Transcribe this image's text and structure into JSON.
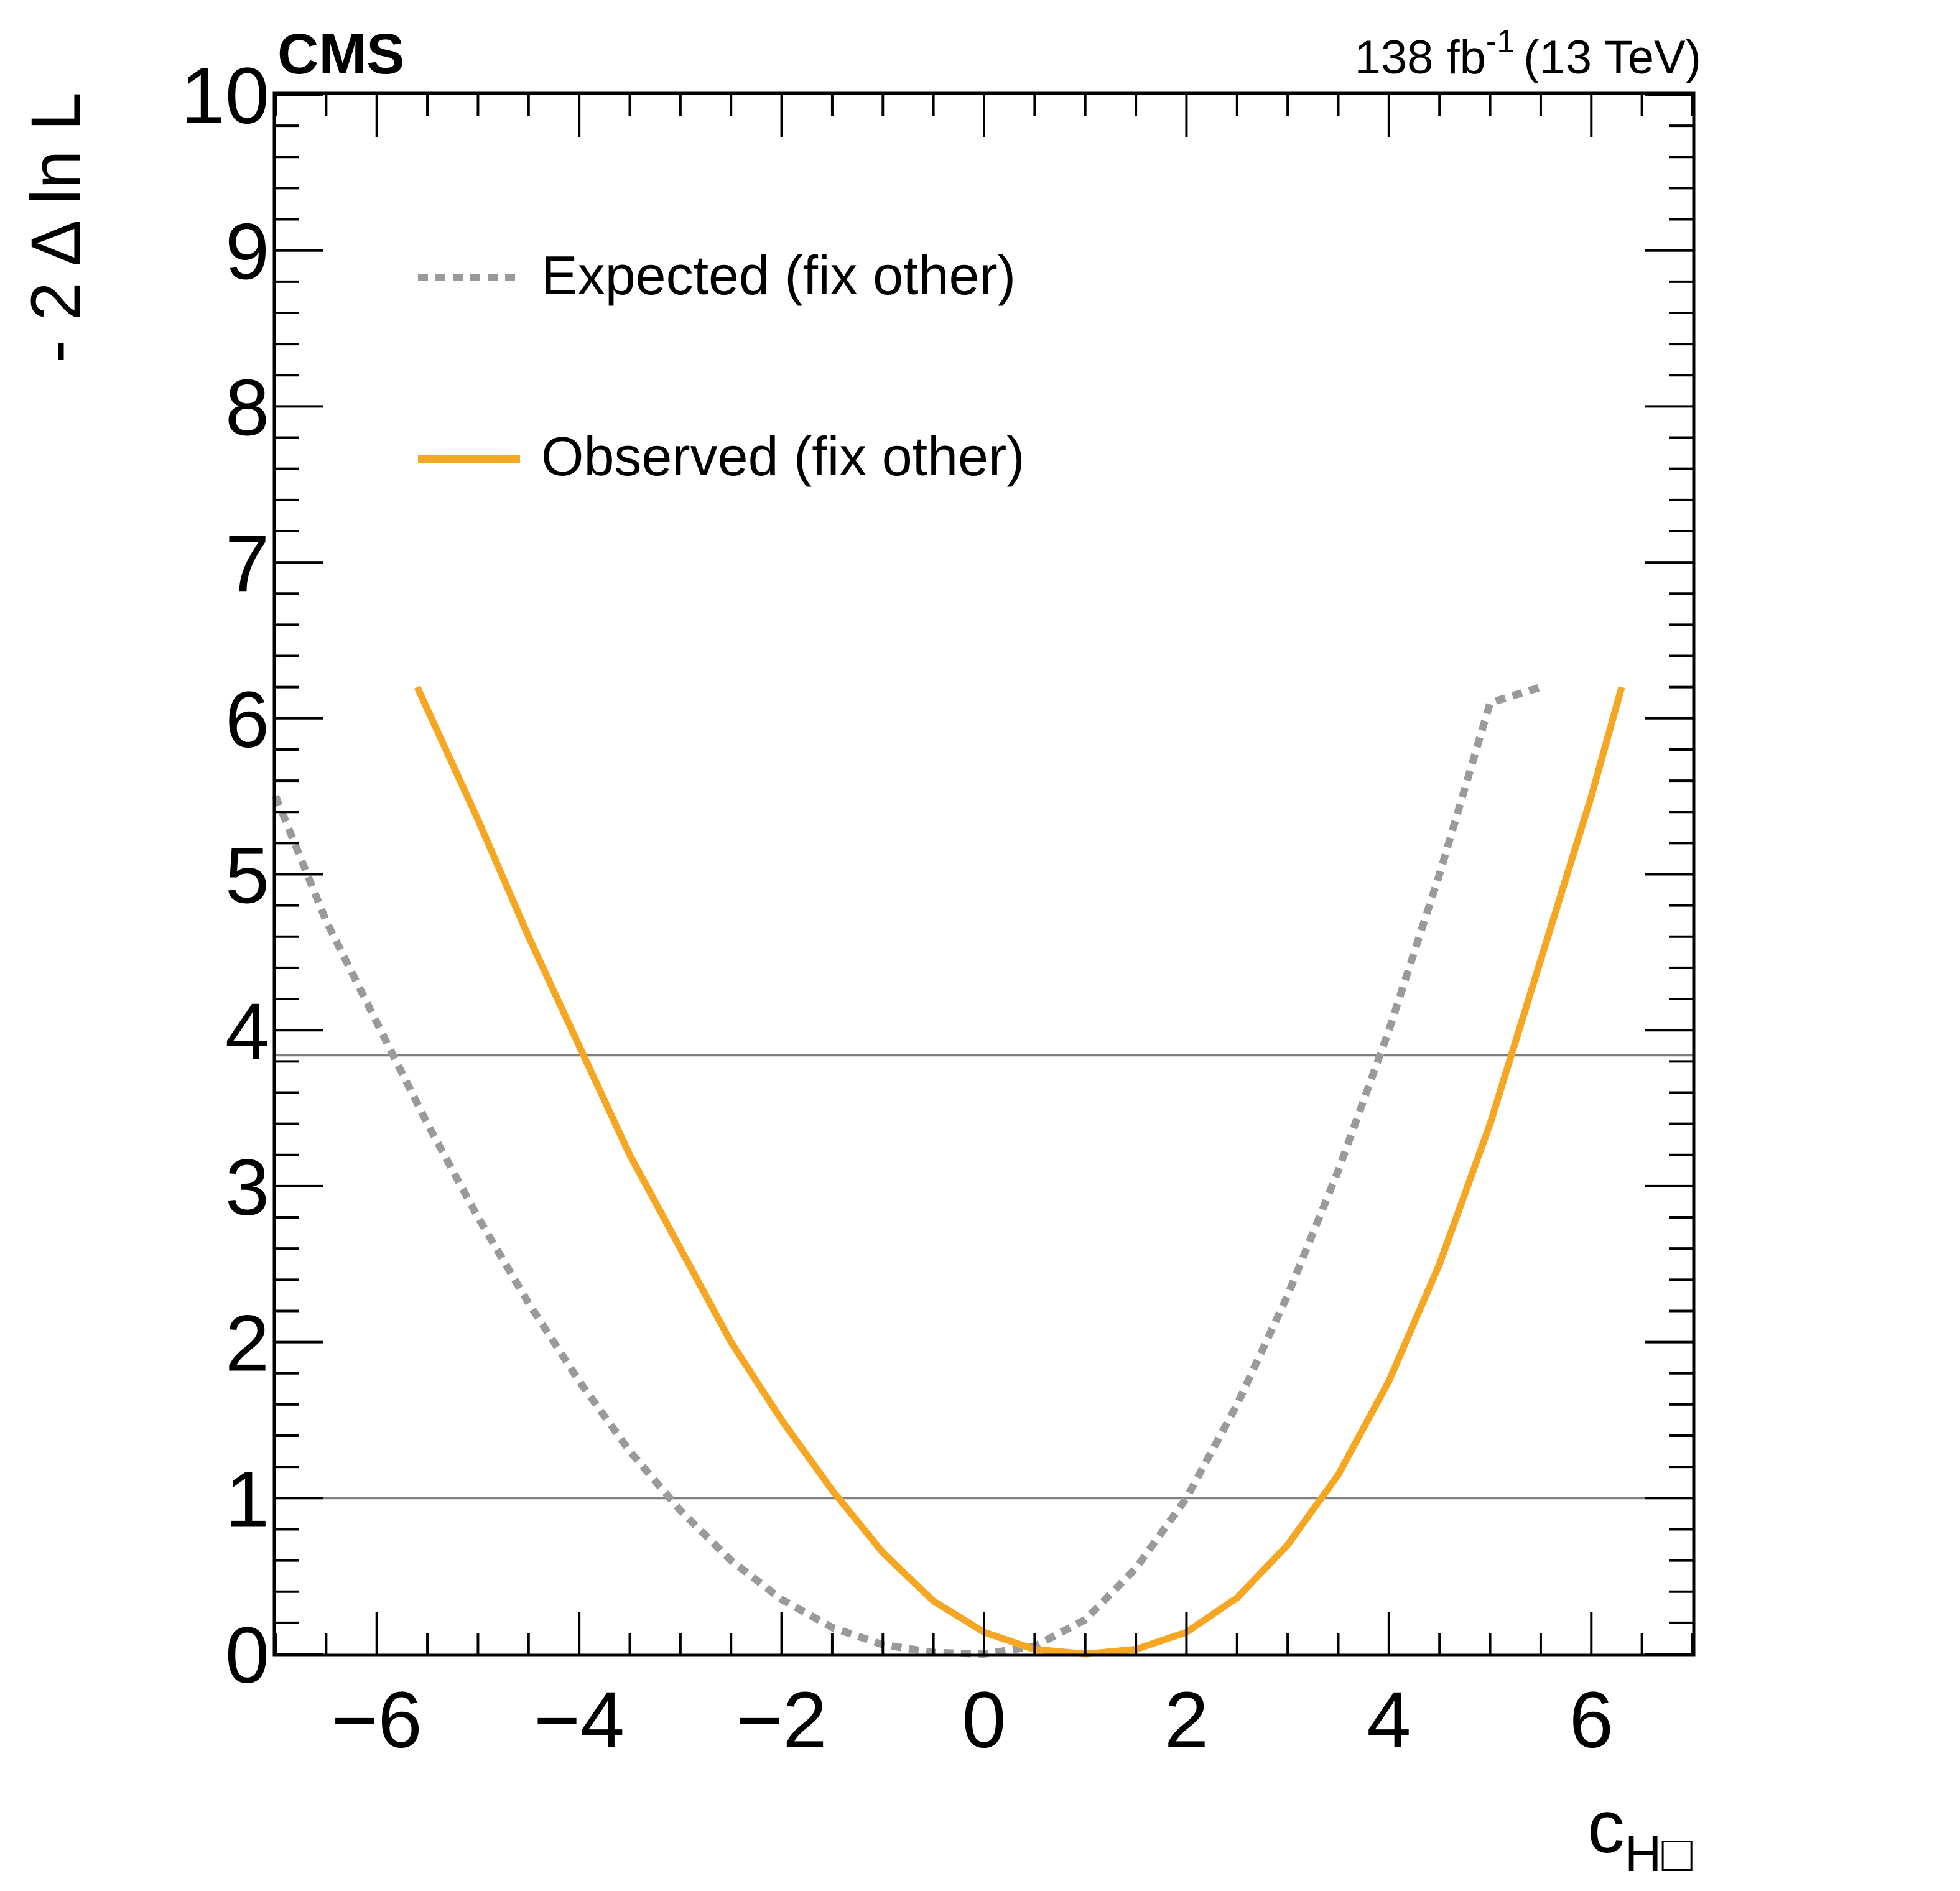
{
  "header": {
    "experiment": "CMS",
    "lumi_value": "138 fb",
    "lumi_exponent": "-1",
    "energy": "(13 TeV)"
  },
  "chart_data": {
    "type": "line",
    "title": "",
    "xlabel_main": "c",
    "xlabel_sub": "H",
    "xlabel_sub_symbol": "□",
    "ylabel": "- 2 Δ ln L",
    "xlim": [
      -7.0,
      7.0
    ],
    "ylim": [
      0,
      10
    ],
    "x_ticks": [
      -6,
      -4,
      -2,
      0,
      2,
      4,
      6
    ],
    "x_tick_labels": [
      "−6",
      "−4",
      "−2",
      "0",
      "2",
      "4",
      "6"
    ],
    "y_ticks": [
      0,
      1,
      2,
      3,
      4,
      5,
      6,
      7,
      8,
      9,
      10
    ],
    "y_tick_labels": [
      "0",
      "1",
      "2",
      "3",
      "4",
      "5",
      "6",
      "7",
      "8",
      "9",
      "10"
    ],
    "grid": false,
    "reference_lines": [
      1.0,
      3.84
    ],
    "legend_position": "upper-left",
    "series": [
      {
        "name": "Expected (fix other)",
        "style": "dashed",
        "color": "#9a9a9a",
        "x": [
          -7.0,
          -6.5,
          -6.0,
          -5.5,
          -5.0,
          -4.5,
          -4.0,
          -3.5,
          -3.0,
          -2.5,
          -2.0,
          -1.5,
          -1.0,
          -0.5,
          0.0,
          0.5,
          1.0,
          1.5,
          2.0,
          2.5,
          3.0,
          3.5,
          4.0,
          4.5,
          5.0,
          5.5
        ],
        "y": [
          5.5,
          4.7,
          4.05,
          3.4,
          2.8,
          2.25,
          1.75,
          1.3,
          0.92,
          0.6,
          0.35,
          0.17,
          0.06,
          0.01,
          0.0,
          0.05,
          0.22,
          0.55,
          1.0,
          1.6,
          2.3,
          3.1,
          4.0,
          5.0,
          6.1,
          6.2
        ]
      },
      {
        "name": "Observed (fix other)",
        "style": "solid",
        "color": "#f5a623",
        "x": [
          -5.6,
          -5.0,
          -4.5,
          -4.0,
          -3.5,
          -3.0,
          -2.5,
          -2.0,
          -1.5,
          -1.0,
          -0.5,
          0.0,
          0.5,
          1.0,
          1.5,
          2.0,
          2.5,
          3.0,
          3.5,
          4.0,
          4.5,
          5.0,
          5.5,
          6.0,
          6.3
        ],
        "y": [
          6.2,
          5.35,
          4.6,
          3.9,
          3.2,
          2.6,
          2.0,
          1.5,
          1.05,
          0.65,
          0.34,
          0.14,
          0.03,
          0.0,
          0.03,
          0.14,
          0.36,
          0.7,
          1.15,
          1.75,
          2.5,
          3.4,
          4.45,
          5.5,
          6.2
        ]
      }
    ]
  }
}
